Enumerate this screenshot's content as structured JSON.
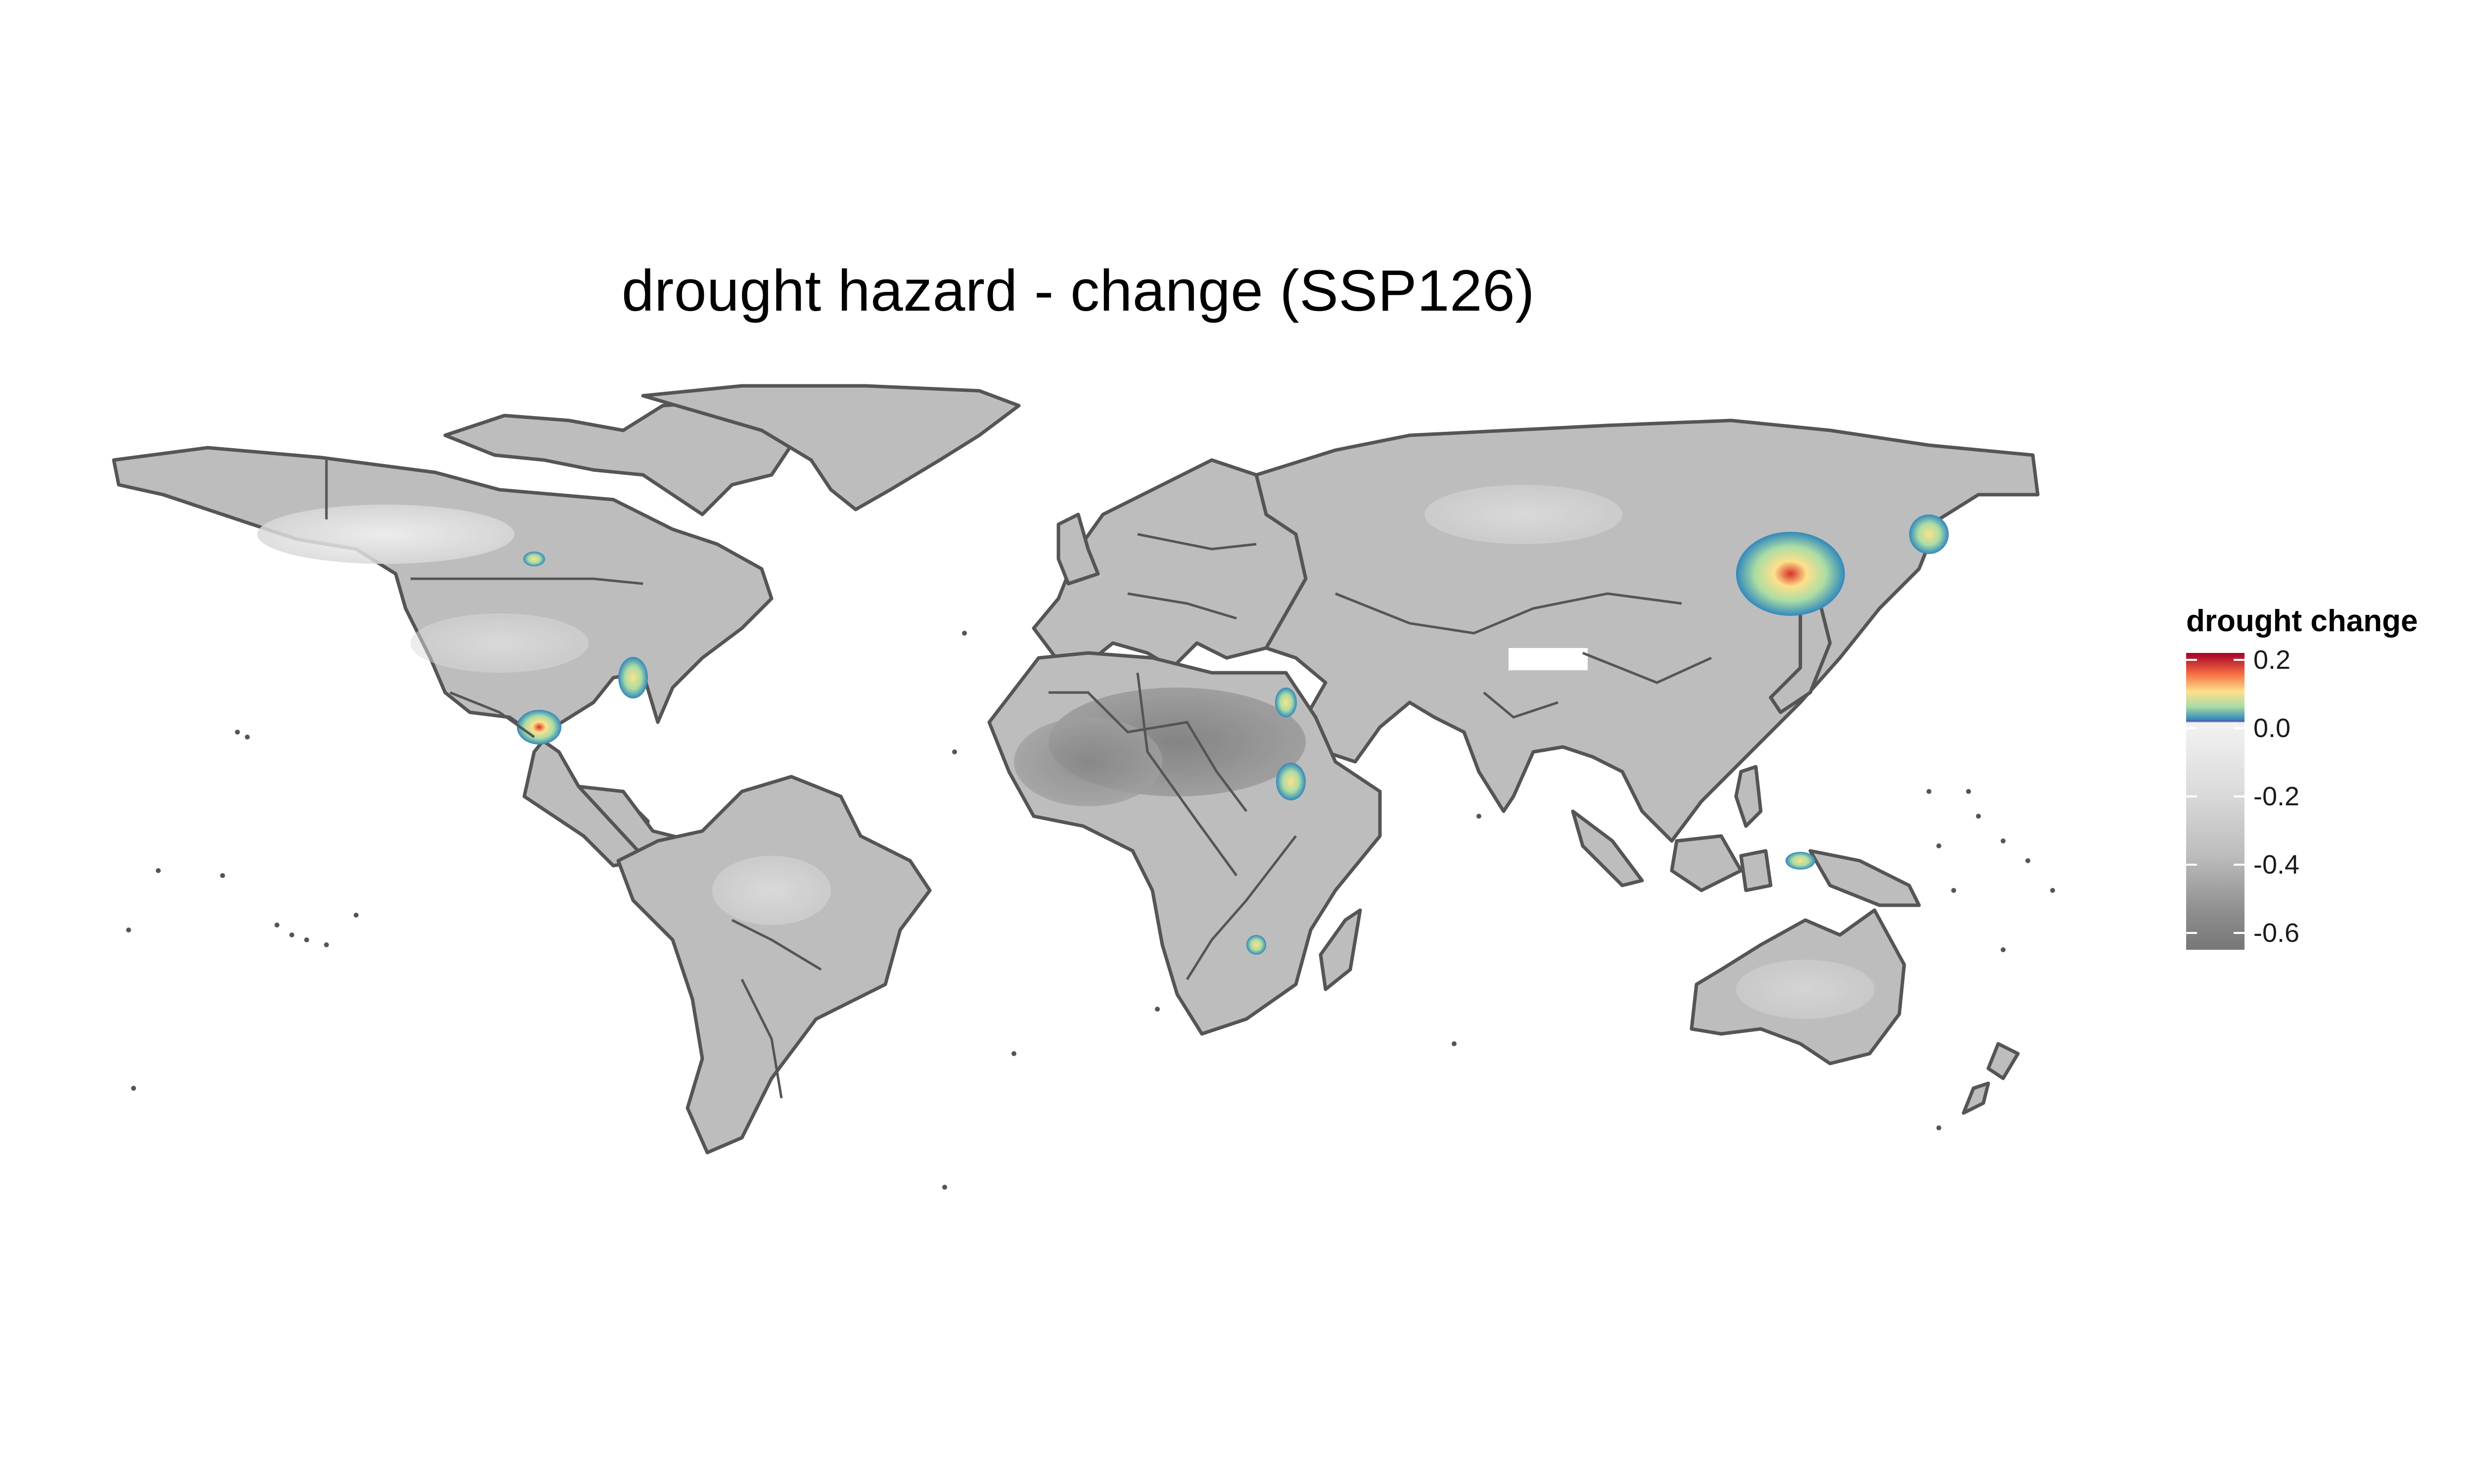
{
  "title": "drought hazard - change (SSP126)",
  "legend": {
    "title": "drought change",
    "ticks": [
      {
        "label": "0.2",
        "value": 0.2
      },
      {
        "label": "0.0",
        "value": 0.0
      },
      {
        "label": "-0.2",
        "value": -0.2
      },
      {
        "label": "-0.4",
        "value": -0.4
      },
      {
        "label": "-0.6",
        "value": -0.6
      }
    ],
    "range": [
      -0.65,
      0.22
    ],
    "colors": {
      "positive_high": "#a50026",
      "positive_mid": "#fee08b",
      "positive_low": "#3288bd",
      "zero": "#f2f2f2",
      "negative": "#777777"
    }
  },
  "map": {
    "projection": "equirectangular",
    "land_fill": "#bdbdbd",
    "border_color": "#555555",
    "hotspots": [
      {
        "region": "Northeast China / Amur",
        "lon": 128,
        "lat": 48,
        "value": 0.15
      },
      {
        "region": "Russian Far East",
        "lon": 136,
        "lat": 51,
        "value": 0.05
      },
      {
        "region": "Mexico",
        "lon": -99,
        "lat": 21,
        "value": 0.1
      },
      {
        "region": "Florida",
        "lon": -82,
        "lat": 29,
        "value": 0.05
      },
      {
        "region": "Ethiopia / Eritrea",
        "lon": 39,
        "lat": 13,
        "value": 0.05
      },
      {
        "region": "Nile / Sudan",
        "lon": 33,
        "lat": 21,
        "value": 0.03
      },
      {
        "region": "Mozambique",
        "lon": 36,
        "lat": -17,
        "value": 0.03
      },
      {
        "region": "New Guinea",
        "lon": 141,
        "lat": -6,
        "value": 0.03
      },
      {
        "region": "Western Canada",
        "lon": -114,
        "lat": 55,
        "value": 0.02
      },
      {
        "region": "Tibetan Plateau",
        "lon": 85,
        "lat": 34,
        "value": 0.0
      }
    ]
  }
}
